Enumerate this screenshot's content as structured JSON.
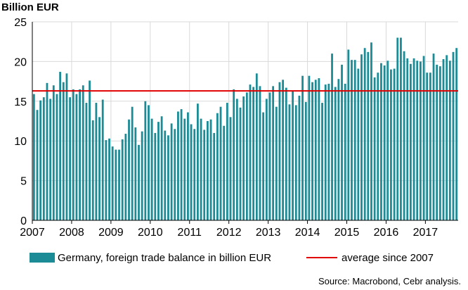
{
  "chart_data": {
    "type": "bar",
    "unit_label": "Billion EUR",
    "ylim": [
      0,
      25
    ],
    "y_ticks": [
      "0",
      "5",
      "10",
      "15",
      "20",
      "25"
    ],
    "x_ticks": [
      "2007",
      "2008",
      "2009",
      "2010",
      "2011",
      "2012",
      "2013",
      "2014",
      "2015",
      "2016",
      "2017"
    ],
    "x_start": "2007-01",
    "grid": true,
    "series": [
      {
        "name": "Germany, foreign trade balance in billion EUR",
        "color": "#1b8b96",
        "values": [
          15.9,
          13.9,
          15.1,
          15.5,
          17.3,
          15.3,
          17.0,
          15.9,
          18.7,
          17.4,
          18.5,
          15.5,
          16.5,
          15.9,
          16.5,
          17.0,
          14.8,
          17.6,
          12.6,
          14.8,
          13.0,
          15.2,
          10.1,
          10.3,
          9.3,
          8.9,
          8.9,
          10.2,
          10.9,
          12.7,
          14.3,
          11.7,
          9.5,
          11.2,
          15.0,
          14.5,
          12.8,
          11.0,
          12.4,
          13.1,
          11.3,
          10.7,
          12.2,
          11.5,
          13.7,
          14.0,
          12.8,
          13.6,
          12.1,
          11.5,
          14.7,
          12.8,
          11.4,
          12.5,
          12.7,
          11.0,
          13.5,
          14.3,
          11.9,
          14.8,
          13.0,
          16.5,
          15.3,
          14.2,
          15.6,
          16.1,
          17.1,
          16.8,
          18.5,
          16.9,
          13.6,
          15.3,
          16.1,
          16.9,
          14.3,
          17.4,
          17.7,
          16.7,
          14.6,
          16.3,
          14.5,
          15.7,
          18.2,
          14.9,
          18.2,
          17.4,
          17.7,
          17.9,
          14.8,
          17.1,
          17.2,
          21.0,
          16.8,
          17.8,
          19.6,
          17.2,
          21.5,
          20.2,
          20.2,
          19.1,
          20.9,
          21.7,
          21.2,
          22.4,
          18.0,
          18.6,
          19.8,
          19.5,
          20.1,
          19.0,
          19.1,
          23.0,
          23.0,
          21.3,
          20.4,
          19.7,
          20.4,
          20.1,
          20.0,
          20.7,
          18.6,
          18.6,
          21.0,
          19.6,
          19.4,
          20.3,
          20.8,
          20.1,
          21.2,
          21.7
        ]
      }
    ],
    "reference_lines": [
      {
        "name": "average since 2007",
        "value": 16.3,
        "color": "#e00000"
      }
    ]
  },
  "source": "Source: Macrobond, Cebr analysis."
}
